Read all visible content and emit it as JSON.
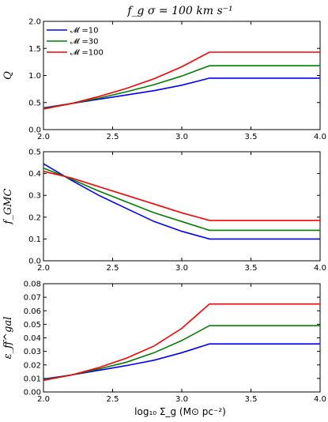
{
  "title": "f_g σ = 100 km s⁻¹",
  "xlabel": "log₁₀ Σ_g (M⊙ pc⁻²)",
  "colors": {
    "m10": "#0000ff",
    "m30": "#008000",
    "m100": "#ff0000"
  },
  "legend": [
    "𝓜 =10",
    "𝓜 =30",
    "𝓜 =100"
  ],
  "chart_data": [
    {
      "type": "line",
      "ylabel": "Q",
      "xlim": [
        2.0,
        4.0
      ],
      "ylim": [
        0.0,
        2.0
      ],
      "xticks": [
        "2.0",
        "2.5",
        "3.0",
        "3.5",
        "4.0"
      ],
      "yticks": [
        "0.0",
        "0.5",
        "1.0",
        "1.5",
        "2.0"
      ],
      "legend_position": "top-left",
      "series": [
        {
          "name": "𝓜 =10",
          "color": "#0000ff",
          "x": [
            2.0,
            2.2,
            2.4,
            2.6,
            2.8,
            3.0,
            3.2,
            3.5,
            4.0
          ],
          "y": [
            0.4,
            0.48,
            0.56,
            0.64,
            0.72,
            0.82,
            0.95,
            0.95,
            0.95
          ]
        },
        {
          "name": "𝓜 =30",
          "color": "#008000",
          "x": [
            2.0,
            2.2,
            2.4,
            2.6,
            2.8,
            3.0,
            3.2,
            3.5,
            4.0
          ],
          "y": [
            0.39,
            0.48,
            0.58,
            0.7,
            0.83,
            0.99,
            1.18,
            1.18,
            1.18
          ]
        },
        {
          "name": "𝓜 =100",
          "color": "#ff0000",
          "x": [
            2.0,
            2.2,
            2.4,
            2.6,
            2.8,
            3.0,
            3.2,
            3.5,
            4.0
          ],
          "y": [
            0.38,
            0.48,
            0.61,
            0.76,
            0.94,
            1.16,
            1.43,
            1.43,
            1.43
          ]
        }
      ]
    },
    {
      "type": "line",
      "ylabel": "f_GMC",
      "xlim": [
        2.0,
        4.0
      ],
      "ylim": [
        0.0,
        0.5
      ],
      "xticks": [
        "2.0",
        "2.5",
        "3.0",
        "3.5",
        "4.0"
      ],
      "yticks": [
        "0.0",
        "0.1",
        "0.2",
        "0.3",
        "0.4",
        "0.5"
      ],
      "series": [
        {
          "name": "𝓜 =10",
          "color": "#0000ff",
          "x": [
            2.0,
            2.2,
            2.4,
            2.6,
            2.8,
            3.0,
            3.2,
            3.5,
            4.0
          ],
          "y": [
            0.445,
            0.37,
            0.3,
            0.24,
            0.18,
            0.135,
            0.1,
            0.1,
            0.1
          ]
        },
        {
          "name": "𝓜 =30",
          "color": "#008000",
          "x": [
            2.0,
            2.2,
            2.4,
            2.6,
            2.8,
            3.0,
            3.2,
            3.5,
            4.0
          ],
          "y": [
            0.425,
            0.375,
            0.32,
            0.27,
            0.22,
            0.18,
            0.14,
            0.14,
            0.14
          ]
        },
        {
          "name": "𝓜 =100",
          "color": "#ff0000",
          "x": [
            2.0,
            2.2,
            2.4,
            2.6,
            2.8,
            3.0,
            3.2,
            3.5,
            4.0
          ],
          "y": [
            0.41,
            0.38,
            0.34,
            0.3,
            0.26,
            0.22,
            0.185,
            0.185,
            0.185
          ]
        }
      ]
    },
    {
      "type": "line",
      "ylabel": "ε_ff^gal",
      "xlim": [
        2.0,
        4.0
      ],
      "ylim": [
        0.0,
        0.08
      ],
      "xticks": [
        "2.0",
        "2.5",
        "3.0",
        "3.5",
        "4.0"
      ],
      "yticks": [
        "0.00",
        "0.01",
        "0.02",
        "0.03",
        "0.04",
        "0.05",
        "0.06",
        "0.07",
        "0.08"
      ],
      "series": [
        {
          "name": "𝓜 =10",
          "color": "#0000ff",
          "x": [
            2.0,
            2.2,
            2.4,
            2.6,
            2.8,
            3.0,
            3.2,
            3.5,
            4.0
          ],
          "y": [
            0.0095,
            0.0125,
            0.016,
            0.0195,
            0.0235,
            0.029,
            0.0355,
            0.0355,
            0.0355
          ]
        },
        {
          "name": "𝓜 =30",
          "color": "#008000",
          "x": [
            2.0,
            2.2,
            2.4,
            2.6,
            2.8,
            3.0,
            3.2,
            3.5,
            4.0
          ],
          "y": [
            0.009,
            0.0125,
            0.017,
            0.022,
            0.029,
            0.038,
            0.049,
            0.049,
            0.049
          ]
        },
        {
          "name": "𝓜 =100",
          "color": "#ff0000",
          "x": [
            2.0,
            2.2,
            2.4,
            2.6,
            2.8,
            3.0,
            3.2,
            3.5,
            4.0
          ],
          "y": [
            0.0085,
            0.0125,
            0.018,
            0.025,
            0.034,
            0.047,
            0.065,
            0.065,
            0.065
          ]
        }
      ]
    }
  ]
}
